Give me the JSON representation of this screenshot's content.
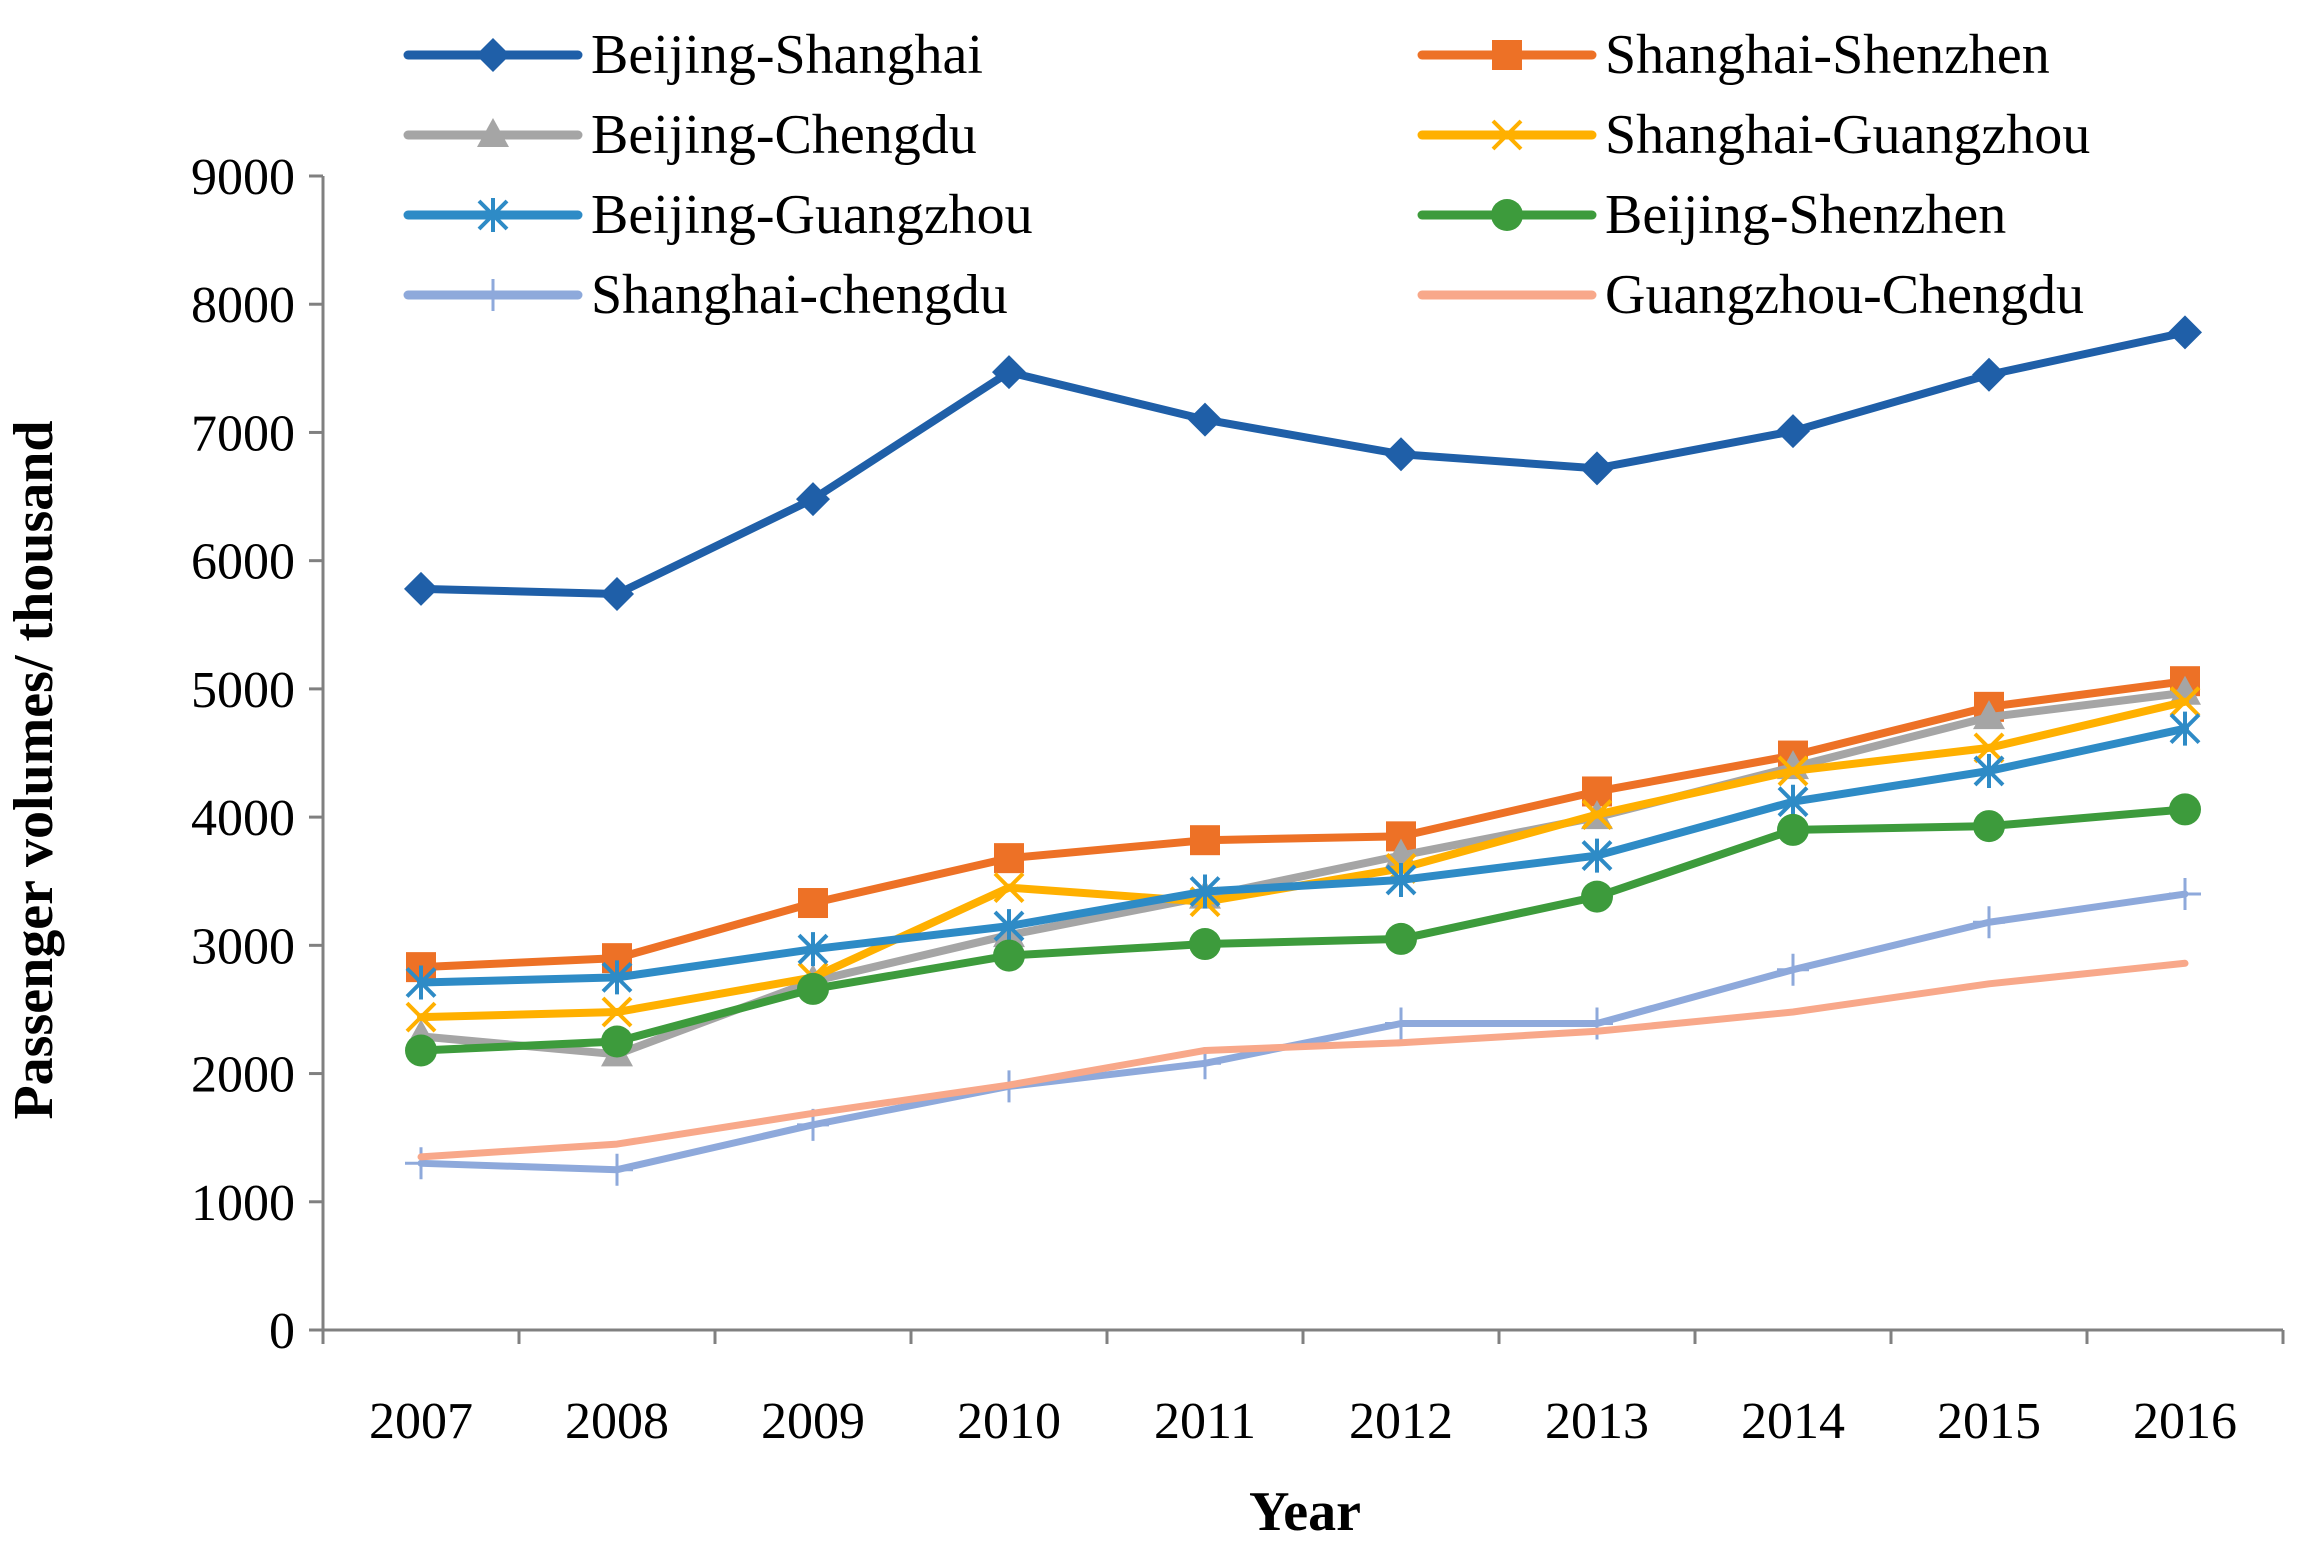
{
  "chart_data": {
    "type": "line",
    "title": "",
    "xlabel": "Year",
    "ylabel": "Passenger volumes/ thousand",
    "categories": [
      "2007",
      "2008",
      "2009",
      "2010",
      "2011",
      "2012",
      "2013",
      "2014",
      "2015",
      "2016"
    ],
    "ylim": [
      0,
      9000
    ],
    "yticks": [
      0,
      1000,
      2000,
      3000,
      4000,
      5000,
      6000,
      7000,
      8000,
      9000
    ],
    "legend_position": "top",
    "series": [
      {
        "name": "Beijing-Shanghai",
        "color": "#1f5fa8",
        "marker": "diamond",
        "values": [
          5780,
          5740,
          6480,
          7470,
          7100,
          6830,
          6720,
          7010,
          7450,
          7780
        ]
      },
      {
        "name": "Shanghai-Shenzhen",
        "color": "#ed7126",
        "marker": "square",
        "values": [
          2830,
          2900,
          3330,
          3680,
          3820,
          3850,
          4200,
          4480,
          4860,
          5060
        ]
      },
      {
        "name": "Beijing-Chengdu",
        "color": "#a5a5a5",
        "marker": "triangle",
        "values": [
          2290,
          2150,
          2720,
          3080,
          3380,
          3700,
          4000,
          4390,
          4780,
          4970
        ]
      },
      {
        "name": "Shanghai-Guangzhou",
        "color": "#ffb000",
        "marker": "x",
        "values": [
          2440,
          2480,
          2750,
          3450,
          3340,
          3600,
          4020,
          4360,
          4540,
          4900
        ]
      },
      {
        "name": "Beijing-Guangzhou",
        "color": "#2e8bc6",
        "marker": "star",
        "values": [
          2710,
          2750,
          2970,
          3150,
          3420,
          3510,
          3700,
          4120,
          4360,
          4690
        ]
      },
      {
        "name": "Beijing-Shenzhen",
        "color": "#3d9b3c",
        "marker": "circle",
        "values": [
          2180,
          2250,
          2660,
          2920,
          3010,
          3050,
          3380,
          3900,
          3930,
          4060
        ]
      },
      {
        "name": "Shanghai-chengdu",
        "color": "#8ea9db",
        "marker": "plus",
        "values": [
          1300,
          1250,
          1600,
          1900,
          2080,
          2390,
          2390,
          2810,
          3180,
          3400
        ]
      },
      {
        "name": "Guangzhou-Chengdu",
        "color": "#f8a88a",
        "marker": "none",
        "values": [
          1350,
          1450,
          1690,
          1910,
          2180,
          2240,
          2330,
          2480,
          2700,
          2860
        ]
      }
    ]
  }
}
